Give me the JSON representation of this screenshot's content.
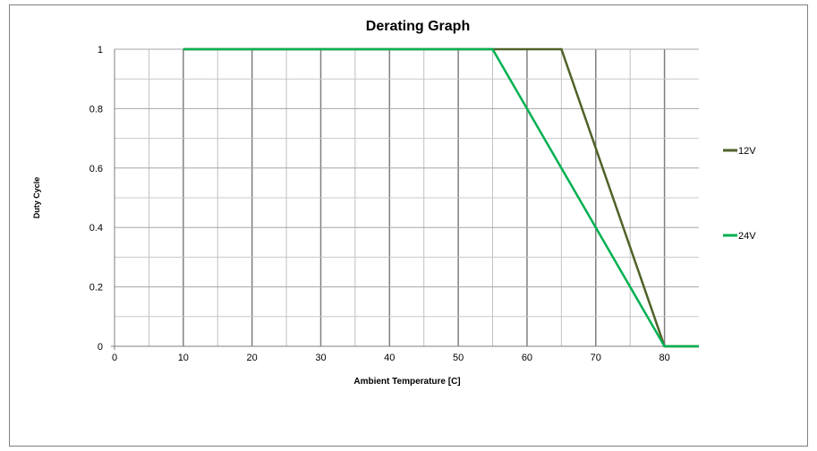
{
  "chart_data": {
    "type": "line",
    "title": "Derating Graph",
    "xlabel": "Ambient Temperature [C]",
    "ylabel": "Duty Cycle",
    "xlim": [
      0,
      85
    ],
    "ylim": [
      0,
      1
    ],
    "x_ticks": [
      0,
      10,
      20,
      30,
      40,
      50,
      60,
      70,
      80
    ],
    "y_ticks": [
      0,
      0.2,
      0.4,
      0.6,
      0.8,
      1
    ],
    "x_tick_labels": [
      "0",
      "10",
      "20",
      "30",
      "40",
      "50",
      "60",
      "70",
      "80"
    ],
    "y_tick_labels": [
      "0",
      "0.2",
      "0.4",
      "0.6",
      "0.8",
      "1"
    ],
    "grid": true,
    "legend_position": "right",
    "series": [
      {
        "name": "12V",
        "color": "#4f6228",
        "x": [
          10,
          65,
          80,
          85
        ],
        "y": [
          1,
          1,
          0,
          0
        ]
      },
      {
        "name": "24V",
        "color": "#00b050",
        "x": [
          10,
          55,
          80,
          85
        ],
        "y": [
          1,
          1,
          0,
          0
        ]
      }
    ]
  },
  "colors": {
    "frame": "#808080",
    "grid": "#a6a6a6",
    "axis": "#7f7f7f"
  }
}
